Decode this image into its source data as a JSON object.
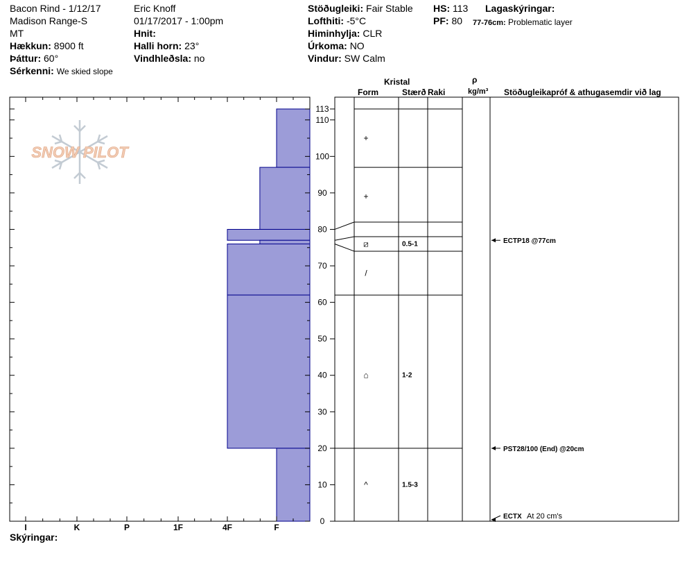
{
  "header": {
    "location": "Bacon Rind - 1/12/17",
    "range": "Madison Range-S",
    "state": "MT",
    "elevation_label": "Hækkun:",
    "elevation_value": "8900 ft",
    "aspect_label": "Þáttur:",
    "aspect_value": "60°",
    "features_label": "Sérkenni:",
    "features_value": "We skied slope",
    "observer": "Eric Knoff",
    "datetime": "01/17/2017 - 1:00pm",
    "coords_label": "Hnit:",
    "slope_label": "Halli horn:",
    "slope_value": "23°",
    "wind_loading_label": "Vindhleðsla:",
    "wind_loading_value": "no",
    "stability_label": "Stöðugleiki:",
    "stability_value": "Fair Stable",
    "air_temp_label": "Lofthiti:",
    "air_temp_value": "-5°C",
    "sky_label": "Himinhylja:",
    "sky_value": "CLR",
    "precip_label": "Úrkoma:",
    "precip_value": "NO",
    "wind_label": "Vindur:",
    "wind_value": "SW Calm",
    "hs_label": "HS:",
    "hs_value": "113",
    "pf_label": "PF:",
    "pf_value": "80",
    "layer_notes_label": "Lagaskýringar:",
    "layer_note_range": "77-76cm:",
    "layer_note_text": "Problematic layer"
  },
  "columns": {
    "crystal": "Kristal",
    "form": "Form",
    "size": "Stærð",
    "moisture": "Raki",
    "rho": "ρ",
    "density_unit": "kg/m³",
    "tests": "Stöðugleikapróf & athugasemdir við lag"
  },
  "legend_label": "Skýringar:",
  "logo_text": "SNOW PILOT",
  "colors": {
    "hardness_fill": "#9c9cd8",
    "hardness_stroke": "#00008b",
    "logo_text": "#f2cbb3",
    "logo_flake": "#c3cbd3"
  },
  "chart_data": {
    "type": "bar",
    "orientation": "horizontal",
    "x_categories": [
      "I",
      "K",
      "P",
      "1F",
      "4F",
      "F"
    ],
    "ylim": [
      0,
      113
    ],
    "y_ticks": [
      0,
      10,
      20,
      30,
      40,
      50,
      60,
      70,
      80,
      90,
      100,
      110,
      113
    ],
    "hardness_layers": [
      {
        "top": 113,
        "bottom": 97,
        "hardness": "F"
      },
      {
        "top": 97,
        "bottom": 80,
        "hardness": "4F-"
      },
      {
        "top": 80,
        "bottom": 77,
        "hardness": "4F"
      },
      {
        "top": 77,
        "bottom": 76,
        "hardness": "4F-"
      },
      {
        "top": 76,
        "bottom": 62,
        "hardness": "4F"
      },
      {
        "top": 62,
        "bottom": 20,
        "hardness": "4F"
      },
      {
        "top": 20,
        "bottom": 0,
        "hardness": "F"
      }
    ],
    "profile_boundaries": [
      113,
      97,
      82,
      78,
      74,
      62,
      20
    ],
    "crystals": [
      {
        "depth": 105,
        "symbol": "+",
        "size": ""
      },
      {
        "depth": 89,
        "symbol": "+",
        "size": ""
      },
      {
        "depth": 76,
        "symbol": "⧄",
        "size": "0.5-1"
      },
      {
        "depth": 68,
        "symbol": "/",
        "size": ""
      },
      {
        "depth": 40,
        "symbol": "⌂",
        "size": "1-2"
      },
      {
        "depth": 10,
        "symbol": "^",
        "size": "1.5-3"
      }
    ],
    "tests": [
      {
        "depth": 77,
        "label": "ECTP18 @77cm",
        "note": ""
      },
      {
        "depth": 20,
        "label": "PST28/100 (End) @20cm",
        "note": ""
      },
      {
        "depth": 0,
        "label": "ECTX",
        "note": "At 20 cm's"
      }
    ]
  }
}
